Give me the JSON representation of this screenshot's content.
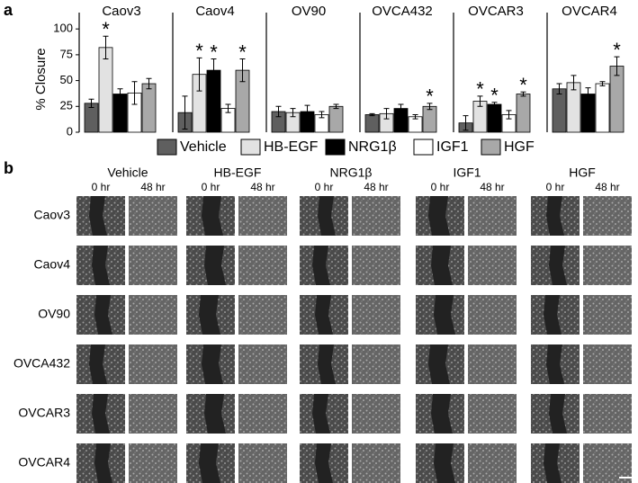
{
  "panel_labels": [
    "a",
    "b"
  ],
  "legend": [
    {
      "name": "Vehicle",
      "color": "#5f5f5f"
    },
    {
      "name": "HB-EGF",
      "color": "#e2e2e2"
    },
    {
      "name": "NRG1β",
      "color": "#000000"
    },
    {
      "name": "IGF1",
      "color": "#ffffff"
    },
    {
      "name": "HGF",
      "color": "#a8a8a8"
    }
  ],
  "chart_data": [
    {
      "type": "bar",
      "title": "Caov3",
      "ylabel": "% Closure",
      "ylim": [
        0,
        110
      ],
      "yticks": [
        0,
        25,
        50,
        75,
        100
      ],
      "values": [
        28,
        82,
        37,
        38,
        47
      ],
      "errors": [
        4,
        11,
        5,
        11,
        5
      ],
      "significance": [
        null,
        "*",
        null,
        null,
        null
      ]
    },
    {
      "type": "bar",
      "title": "Caov4",
      "ylim": [
        0,
        110
      ],
      "values": [
        19,
        56,
        60,
        23,
        60
      ],
      "errors": [
        16,
        16,
        11,
        4,
        11
      ],
      "significance": [
        null,
        "*",
        "*",
        null,
        "*"
      ]
    },
    {
      "type": "bar",
      "title": "OV90",
      "ylim": [
        0,
        110
      ],
      "values": [
        20,
        19,
        20,
        17,
        25
      ],
      "errors": [
        5,
        4,
        6,
        3,
        2
      ],
      "significance": [
        null,
        null,
        null,
        null,
        null
      ]
    },
    {
      "type": "bar",
      "title": "OVCA432",
      "ylim": [
        0,
        110
      ],
      "values": [
        17,
        18,
        23,
        15,
        25
      ],
      "errors": [
        1,
        5,
        4,
        2,
        3
      ],
      "significance": [
        null,
        null,
        null,
        null,
        "*"
      ]
    },
    {
      "type": "bar",
      "title": "OVCAR3",
      "ylim": [
        0,
        110
      ],
      "values": [
        9,
        30,
        27,
        17,
        37
      ],
      "errors": [
        7,
        5,
        2,
        4,
        2
      ],
      "significance": [
        null,
        "*",
        "*",
        null,
        "*"
      ]
    },
    {
      "type": "bar",
      "title": "OVCAR4",
      "ylim": [
        0,
        110
      ],
      "values": [
        42,
        48,
        37,
        47,
        64
      ],
      "errors": [
        5,
        7,
        6,
        2,
        9
      ],
      "significance": [
        null,
        null,
        null,
        null,
        "*"
      ]
    }
  ],
  "images": {
    "columns": [
      "Vehicle",
      "HB-EGF",
      "NRG1β",
      "IGF1",
      "HGF"
    ],
    "time_points": [
      "0 hr",
      "48 hr"
    ],
    "rows": [
      "Caov3",
      "Caov4",
      "OV90",
      "OVCA432",
      "OVCAR3",
      "OVCAR4"
    ]
  }
}
